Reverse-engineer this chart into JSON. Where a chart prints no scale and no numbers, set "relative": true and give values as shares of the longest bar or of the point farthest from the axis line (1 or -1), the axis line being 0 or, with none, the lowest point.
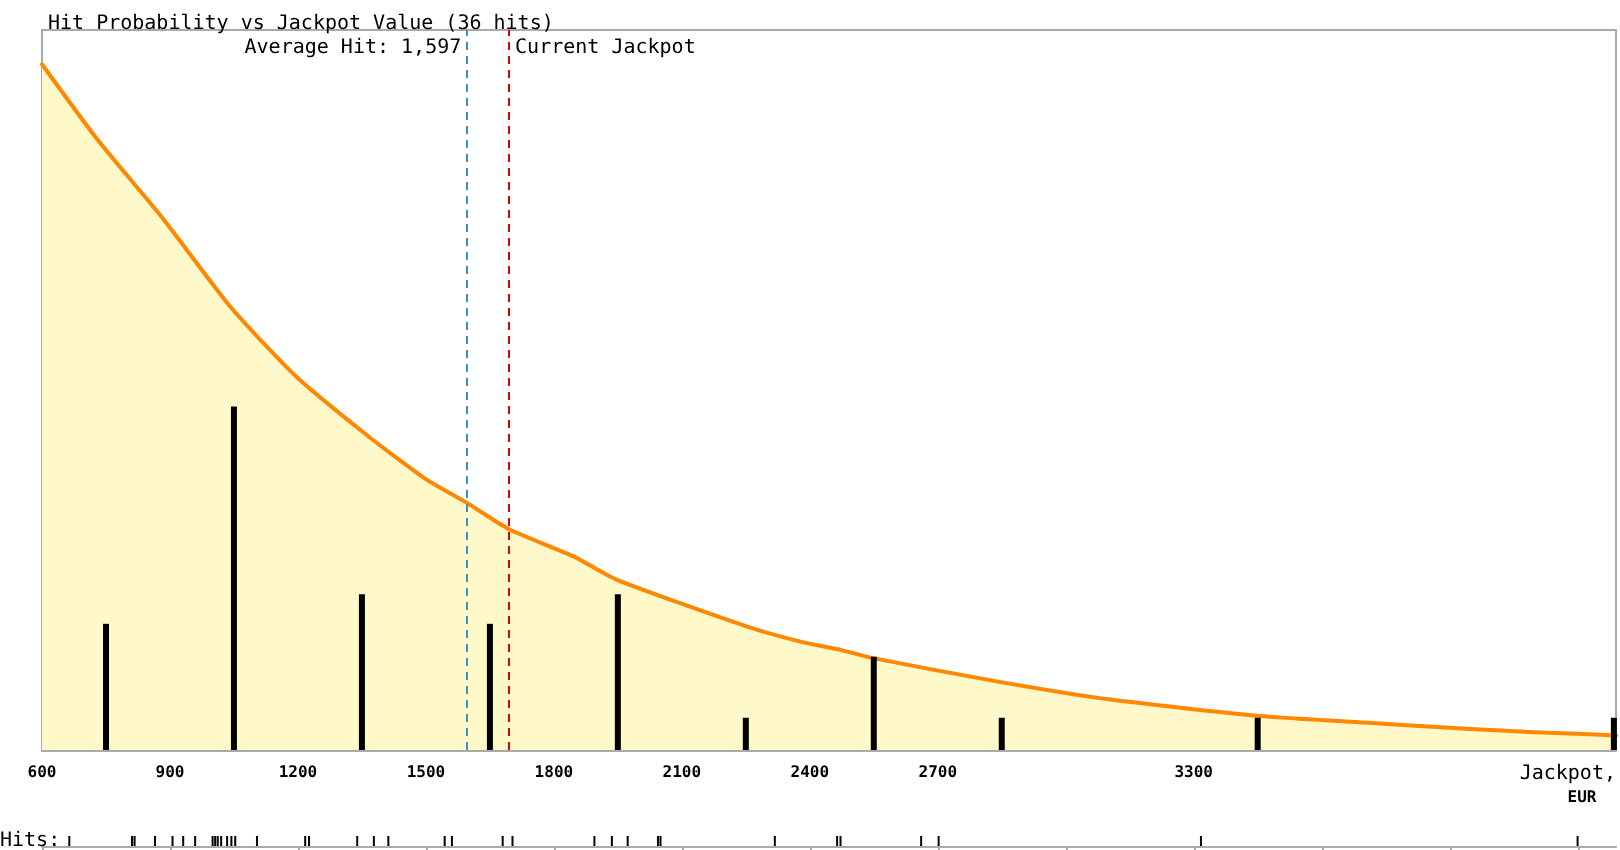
{
  "chart_data": [
    {
      "type": "bar",
      "title": "Hit Probability vs Jackpot Value (36 hits)",
      "relative": true,
      "tick_labels": false,
      "xlim": [
        600,
        4290
      ],
      "series": [
        {
          "type": "area",
          "color": "#ff8800",
          "x": [
            600,
            729,
            886,
            1042,
            1195,
            1370,
            1500,
            1597,
            1695,
            1847,
            1948,
            2248,
            2378,
            2472,
            2548,
            2848,
            3100,
            3448,
            3700,
            3939,
            4100,
            4267,
            4290
          ],
          "values": [
            1.0,
            0.891,
            0.773,
            0.646,
            0.545,
            0.455,
            0.395,
            0.36,
            0.322,
            0.282,
            0.248,
            0.181,
            0.158,
            0.146,
            0.134,
            0.099,
            0.074,
            0.05,
            0.04,
            0.031,
            0.026,
            0.022,
            0.021
          ]
        },
        {
          "color": "#000000",
          "x": [
            750,
            1050,
            1350,
            1650,
            1950,
            2250,
            2550,
            2850,
            3450,
            4285
          ],
          "values": [
            0.184,
            0.501,
            0.227,
            0.184,
            0.227,
            0.047,
            0.136,
            0.047,
            0.047,
            0.047
          ]
        }
      ],
      "ref_lines": [
        {
          "axis": "x",
          "value": 1597,
          "label": "Average Hit: 1,597",
          "color": "#3d8fc4",
          "line_style": "dashed"
        },
        {
          "axis": "x",
          "value": 1695,
          "label": "Current Jackpot",
          "color": "#e00000",
          "line_style": "dashed"
        }
      ]
    },
    {
      "type": "bar",
      "xlabel": "Jackpot, EUR",
      "ylabel": "Hits:",
      "relative": true,
      "color": "#000000",
      "xlim": [
        600,
        4290
      ],
      "xticks": [
        600,
        900,
        1200,
        1500,
        1800,
        2100,
        2400,
        2700,
        {
          "value": 3000,
          "label": null
        },
        3300,
        {
          "value": 3600,
          "label": null
        },
        {
          "value": 3900,
          "label": null
        },
        {
          "value": 4200,
          "label": null
        }
      ],
      "x": [
        664,
        811,
        817,
        865,
        906,
        931,
        959,
        1000,
        1006,
        1012,
        1020,
        1034,
        1044,
        1053,
        1104,
        1217,
        1226,
        1339,
        1378,
        1412,
        1544,
        1561,
        1680,
        1703,
        1895,
        1936,
        1973,
        2044,
        2050,
        2318,
        2464,
        2472,
        2661,
        2702,
        3317,
        4200
      ],
      "values": [
        1,
        1,
        1,
        1,
        1,
        1,
        1,
        1,
        1,
        1,
        1,
        1,
        1,
        1,
        1,
        1,
        1,
        1,
        1,
        1,
        1,
        1,
        1,
        1,
        1,
        1,
        1,
        1,
        1,
        1,
        1,
        1,
        1,
        1,
        1,
        1
      ]
    }
  ]
}
